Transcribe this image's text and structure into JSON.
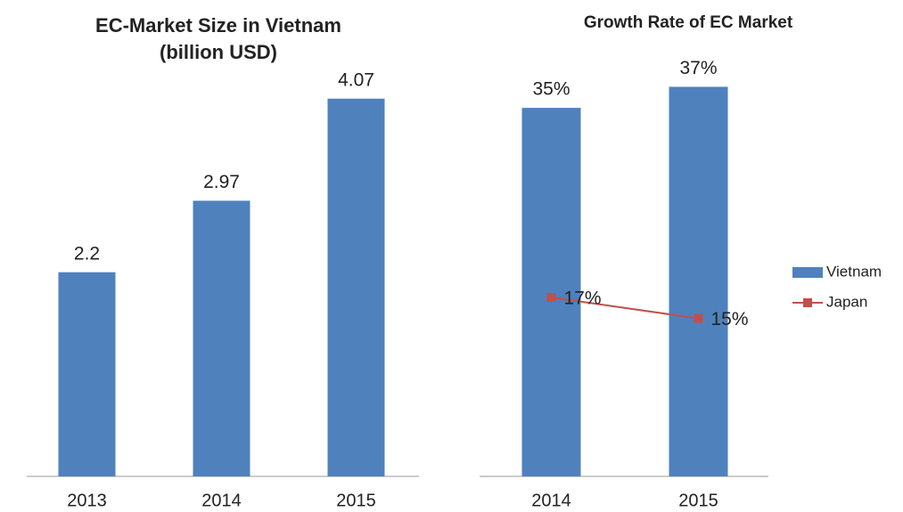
{
  "chart_data": [
    {
      "type": "bar",
      "title": "EC-Market Size in Vietnam",
      "subtitle": "(billion USD)",
      "categories": [
        "2013",
        "2014",
        "2015"
      ],
      "values": [
        2.2,
        2.97,
        4.07
      ],
      "color": "#4f81bd",
      "ylim": [
        0,
        4.5
      ]
    },
    {
      "type": "combo",
      "title": "Growth Rate of EC Market",
      "categories": [
        "2014",
        "2015"
      ],
      "series": [
        {
          "name": "Vietnam",
          "type": "bar",
          "color": "#4f81bd",
          "values": [
            35,
            37
          ],
          "value_labels": [
            "35%",
            "37%"
          ]
        },
        {
          "name": "Japan",
          "type": "line",
          "color": "#c0504d",
          "values": [
            17,
            15
          ],
          "value_labels": [
            "17%",
            "15%"
          ]
        }
      ],
      "ylim": [
        0,
        40
      ],
      "legend": "right"
    }
  ]
}
